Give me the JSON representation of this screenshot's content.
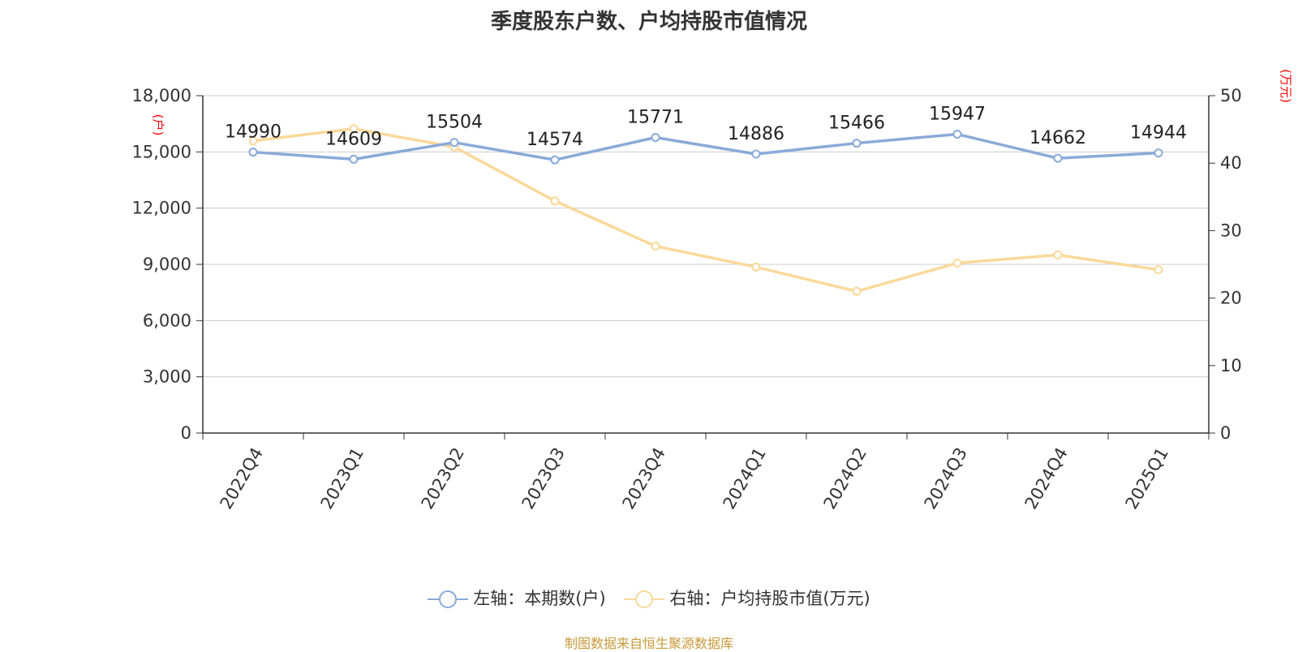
{
  "chart_data": {
    "type": "line",
    "title": "季度股东户数、户均持股市值情况",
    "categories": [
      "2022Q4",
      "2023Q1",
      "2023Q2",
      "2023Q3",
      "2023Q4",
      "2024Q1",
      "2024Q2",
      "2024Q3",
      "2024Q4",
      "2025Q1"
    ],
    "left_axis": {
      "unit_label": "(户)",
      "ylim": [
        0,
        18000
      ],
      "ticks": [
        "0",
        "3,000",
        "6,000",
        "9,000",
        "12,000",
        "15,000",
        "18,000"
      ],
      "tick_values": [
        0,
        3000,
        6000,
        9000,
        12000,
        15000,
        18000
      ]
    },
    "right_axis": {
      "unit_label": "(万元)",
      "ylim": [
        0,
        50
      ],
      "ticks": [
        "0",
        "10",
        "20",
        "30",
        "40",
        "50"
      ],
      "tick_values": [
        0,
        10,
        20,
        30,
        40,
        50
      ]
    },
    "series": [
      {
        "name": "左轴：本期数(户)",
        "axis": "left",
        "color": "#8aaad9",
        "values": [
          14990,
          14609,
          15504,
          14574,
          15771,
          14886,
          15466,
          15947,
          14662,
          14944
        ],
        "labels": [
          "14990",
          "14609",
          "15504",
          "14574",
          "15771",
          "14886",
          "15466",
          "15947",
          "14662",
          "14944"
        ]
      },
      {
        "name": "右轴：户均持股市值(万元)",
        "axis": "right",
        "color": "#fbd89a",
        "values": [
          43.3,
          45.1,
          42.4,
          34.4,
          27.7,
          24.6,
          21.0,
          25.2,
          26.4,
          24.2
        ]
      }
    ],
    "grid": true,
    "legend_position": "bottom"
  },
  "source": "制图数据来自恒生聚源数据库",
  "colors": {
    "axis_unit": "#ff0000",
    "grid": "#cccccc",
    "axis": "#333333"
  }
}
